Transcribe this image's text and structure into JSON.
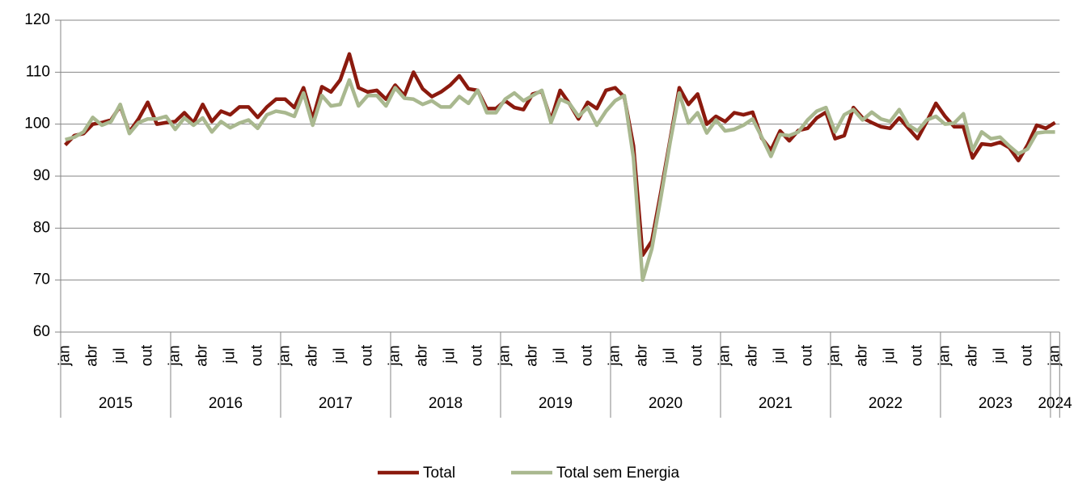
{
  "chart_data": {
    "type": "line",
    "categories": [
      "jan",
      null,
      null,
      "abr",
      null,
      null,
      "jul",
      null,
      null,
      "out",
      null,
      null,
      "jan",
      null,
      null,
      "abr",
      null,
      null,
      "jul",
      null,
      null,
      "out",
      null,
      null,
      "jan",
      null,
      null,
      "abr",
      null,
      null,
      "jul",
      null,
      null,
      "out",
      null,
      null,
      "jan",
      null,
      null,
      "abr",
      null,
      null,
      "jul",
      null,
      null,
      "out",
      null,
      null,
      "jan",
      null,
      null,
      "abr",
      null,
      null,
      "jul",
      null,
      null,
      "out",
      null,
      null,
      "jan",
      null,
      null,
      "abr",
      null,
      null,
      "jul",
      null,
      null,
      "out",
      null,
      null,
      "jan",
      null,
      null,
      "abr",
      null,
      null,
      "jul",
      null,
      null,
      "out",
      null,
      null,
      "jan",
      null,
      null,
      "abr",
      null,
      null,
      "jul",
      null,
      null,
      "out",
      null,
      null,
      "jan",
      null,
      null,
      "abr",
      null,
      null,
      "jul",
      null,
      null,
      "out",
      null,
      null,
      "jan"
    ],
    "years": [
      "2015",
      "2016",
      "2017",
      "2018",
      "2019",
      "2020",
      "2021",
      "2022",
      "2023",
      "2024"
    ],
    "series": [
      {
        "name": "Total",
        "color": "#8b1a0e",
        "values": [
          96,
          97.8,
          98.2,
          100,
          100.3,
          100.8,
          103.5,
          98.5,
          101,
          104.2,
          100,
          100.3,
          100.5,
          102.2,
          100.3,
          103.8,
          100.5,
          102.5,
          101.8,
          103.3,
          103.3,
          101.3,
          103.3,
          104.8,
          104.8,
          103.2,
          107,
          101,
          107.2,
          106.2,
          108.5,
          113.5,
          107,
          106.2,
          106.5,
          104.8,
          107.5,
          105.5,
          110,
          106.8,
          105.3,
          106.2,
          107.5,
          109.3,
          106.8,
          106.5,
          103,
          103,
          104.5,
          103.2,
          102.8,
          105.8,
          106.3,
          100.8,
          106.5,
          104,
          101,
          104.2,
          103,
          106.5,
          107,
          105.2,
          95.8,
          74.8,
          77.5,
          87,
          97,
          107,
          103.8,
          105.8,
          100,
          101.5,
          100.5,
          102.2,
          101.8,
          102.3,
          97.3,
          95,
          98.7,
          96.8,
          98.8,
          99.2,
          101.2,
          102.3,
          97.2,
          97.8,
          103.2,
          101.2,
          100.3,
          99.5,
          99.2,
          101.2,
          99.2,
          97.2,
          100.5,
          104,
          101.5,
          99.5,
          99.5,
          93.5,
          96.2,
          96,
          96.5,
          95.5,
          93,
          96,
          99.8,
          99.2,
          100.3
        ]
      },
      {
        "name": "Total sem Energia",
        "color": "#a9b88f",
        "values": [
          97,
          97.5,
          98.5,
          101.3,
          99.8,
          100.5,
          103.8,
          98.2,
          100.3,
          101,
          101,
          101.5,
          99,
          101.2,
          99.8,
          101.2,
          98.5,
          100.5,
          99.3,
          100.2,
          100.8,
          99.2,
          101.8,
          102.5,
          102.2,
          101.5,
          106,
          99.8,
          105.5,
          103.5,
          103.8,
          108.5,
          103.5,
          105.5,
          105.5,
          103.5,
          107,
          105,
          104.8,
          103.8,
          104.5,
          103.3,
          103.3,
          105.3,
          104,
          106.5,
          102.2,
          102.2,
          104.8,
          106,
          104.5,
          105.5,
          106.5,
          100.3,
          104.8,
          104,
          101.5,
          103.2,
          99.8,
          102.5,
          104.5,
          105.5,
          93.5,
          70,
          76,
          86,
          96.5,
          106,
          100.2,
          102.2,
          98.3,
          100.8,
          98.7,
          99,
          99.8,
          101,
          97.5,
          93.8,
          98,
          97.8,
          98.5,
          100.8,
          102.5,
          103.2,
          98.5,
          101.8,
          102.8,
          100.8,
          102.3,
          101,
          100.5,
          102.8,
          99.8,
          98.7,
          100.8,
          101.5,
          100,
          100.2,
          102,
          95,
          98.5,
          97.2,
          97.5,
          95.8,
          94.3,
          95.2,
          98.3,
          98.5,
          98.5
        ]
      }
    ],
    "ylim": [
      60,
      120
    ],
    "yticks": [
      60,
      70,
      80,
      90,
      100,
      110,
      120
    ],
    "grid": true,
    "legend": "bottom"
  }
}
